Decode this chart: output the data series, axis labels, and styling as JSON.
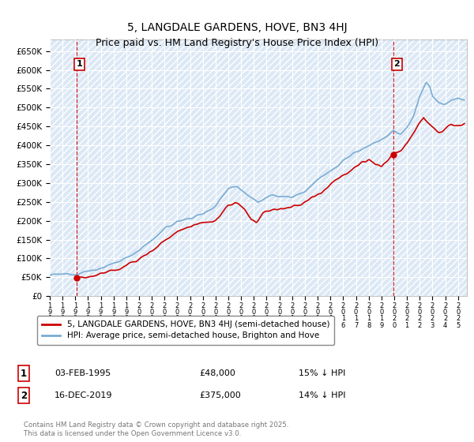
{
  "title": "5, LANGDALE GARDENS, HOVE, BN3 4HJ",
  "subtitle": "Price paid vs. HM Land Registry's House Price Index (HPI)",
  "ylim": [
    0,
    680000
  ],
  "yticks": [
    0,
    50000,
    100000,
    150000,
    200000,
    250000,
    300000,
    350000,
    400000,
    450000,
    500000,
    550000,
    600000,
    650000
  ],
  "ytick_labels": [
    "£0",
    "£50K",
    "£100K",
    "£150K",
    "£200K",
    "£250K",
    "£300K",
    "£350K",
    "£400K",
    "£450K",
    "£500K",
    "£550K",
    "£600K",
    "£650K"
  ],
  "xlim_start": 1993.0,
  "xlim_end": 2025.7,
  "background_color": "#dce8f5",
  "grid_color": "#ffffff",
  "sale1_x": 1995.09,
  "sale1_y": 48000,
  "sale2_x": 2019.96,
  "sale2_y": 375000,
  "legend_line1": "5, LANGDALE GARDENS, HOVE, BN3 4HJ (semi-detached house)",
  "legend_line2": "HPI: Average price, semi-detached house, Brighton and Hove",
  "footer": "Contains HM Land Registry data © Crown copyright and database right 2025.\nThis data is licensed under the Open Government Licence v3.0.",
  "hpi_color": "#7aadd4",
  "price_color": "#cc0000",
  "dashed_color": "#cc0000",
  "title_fontsize": 10,
  "subtitle_fontsize": 9
}
